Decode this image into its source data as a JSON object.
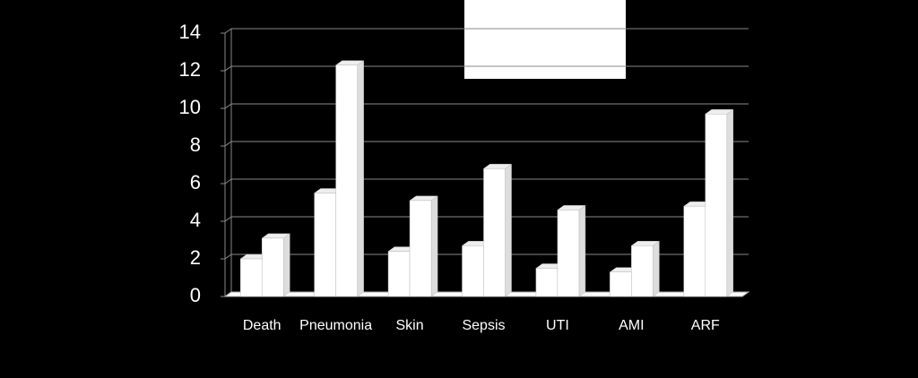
{
  "chart_data": {
    "type": "bar",
    "categories": [
      "Death",
      "Pneumonia",
      "Skin",
      "Sepsis",
      "UTI",
      "AMI",
      "ARF"
    ],
    "series": [
      {
        "color": "#ffffff",
        "values": [
          2.0,
          5.5,
          2.4,
          2.7,
          1.5,
          1.3,
          4.8
        ]
      },
      {
        "color": "#ffffff",
        "values": [
          3.1,
          12.3,
          5.1,
          6.8,
          4.6,
          2.7,
          9.7
        ]
      }
    ],
    "ylim": [
      0,
      14
    ],
    "yticks": [
      0,
      2,
      4,
      6,
      8,
      10,
      12,
      14
    ],
    "grid": true
  }
}
